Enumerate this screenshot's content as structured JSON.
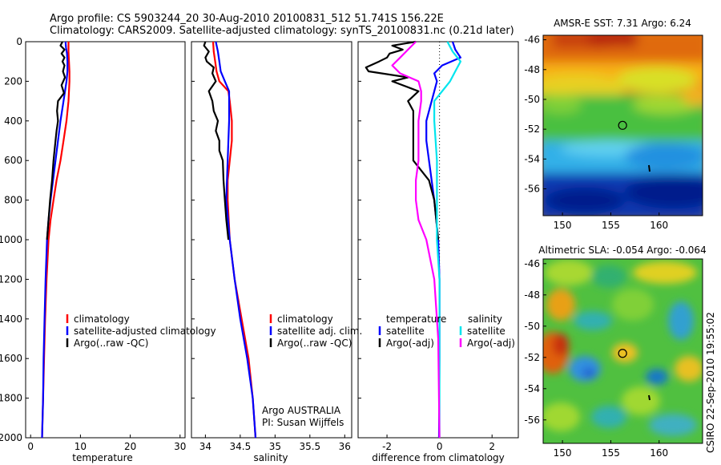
{
  "header": {
    "line1": "Argo profile: CS 5903244_20 30-Aug-2010 20100831_512 51.741S 156.22E",
    "line2": "Climatology: CARS2009. Satellite-adjusted climatology: synTS_20100831.nc (0.21d later)"
  },
  "footer_stamp": "CSIRO 22-Sep-2010 19:55:02",
  "colors": {
    "climatology": "#ff0000",
    "satellite": "#0000ff",
    "argo": "#000000",
    "sal_satellite": "#00e5ee",
    "sal_argo": "#ff00ff",
    "zero_line": "#000000"
  },
  "chart_data": [
    {
      "id": "temperature-profile",
      "type": "line",
      "xlabel": "temperature",
      "ylim": [
        2000,
        0
      ],
      "xlim": [
        -1,
        31
      ],
      "yticks": [
        0,
        200,
        400,
        600,
        800,
        1000,
        1200,
        1400,
        1600,
        1800,
        2000
      ],
      "xticks": [
        0,
        10,
        20,
        30
      ],
      "legend": [
        "climatology",
        "satellite-adjusted climatology",
        "Argo(..raw -QC)"
      ],
      "series": [
        {
          "name": "climatology",
          "color": "#ff0000",
          "depth": [
            0,
            50,
            100,
            150,
            200,
            300,
            400,
            500,
            600,
            700,
            800,
            900,
            1000,
            1200,
            1400,
            1600,
            1800,
            2000
          ],
          "values": [
            7.6,
            7.6,
            7.7,
            7.8,
            7.8,
            7.6,
            7.2,
            6.6,
            6.0,
            5.2,
            4.6,
            4.0,
            3.6,
            3.2,
            2.9,
            2.7,
            2.5,
            2.3
          ]
        },
        {
          "name": "satellite-adjusted climatology",
          "color": "#0000ff",
          "depth": [
            0,
            30,
            60,
            100,
            150,
            200,
            300,
            400,
            500,
            600,
            700,
            800,
            900,
            1000,
            1200,
            1400,
            1600,
            1800,
            2000
          ],
          "values": [
            7.0,
            7.1,
            7.3,
            7.4,
            7.4,
            7.2,
            6.6,
            6.0,
            5.5,
            5.0,
            4.5,
            4.0,
            3.6,
            3.3,
            3.0,
            2.8,
            2.6,
            2.5,
            2.3
          ]
        },
        {
          "name": "Argo(..raw -QC)",
          "color": "#000000",
          "depth": [
            0,
            20,
            40,
            60,
            80,
            100,
            120,
            150,
            180,
            220,
            260,
            300,
            350,
            400,
            450,
            500,
            600,
            700,
            800,
            900,
            1000
          ],
          "values": [
            6.4,
            6.0,
            6.8,
            6.2,
            6.8,
            6.4,
            6.8,
            6.5,
            6.9,
            6.2,
            6.7,
            5.5,
            5.3,
            5.5,
            5.2,
            5.0,
            4.6,
            4.3,
            3.9,
            3.6,
            3.3
          ]
        }
      ]
    },
    {
      "id": "salinity-profile",
      "type": "line",
      "xlabel": "salinity",
      "ylim": [
        2000,
        0
      ],
      "xlim": [
        33.8,
        36.1
      ],
      "xticks": [
        34,
        34.5,
        35,
        35.5,
        36
      ],
      "legend": [
        "climatology",
        "satellite adj. clim.",
        "Argo(..raw -QC)"
      ],
      "annotation": [
        "Argo AUSTRALIA",
        "PI: Susan Wijffels"
      ],
      "series": [
        {
          "name": "climatology",
          "color": "#ff0000",
          "depth": [
            0,
            50,
            100,
            150,
            200,
            250,
            300,
            400,
            500,
            600,
            700,
            800,
            1000,
            1200,
            1400,
            1600,
            1800,
            2000
          ],
          "values": [
            34.11,
            34.12,
            34.14,
            34.16,
            34.2,
            34.33,
            34.35,
            34.38,
            34.38,
            34.35,
            34.32,
            34.32,
            34.35,
            34.42,
            34.52,
            34.62,
            34.68,
            34.72
          ]
        },
        {
          "name": "satellite adj. clim.",
          "color": "#0000ff",
          "depth": [
            0,
            50,
            100,
            150,
            200,
            250,
            300,
            400,
            500,
            600,
            700,
            800,
            1000,
            1200,
            1400,
            1600,
            1800,
            2000
          ],
          "values": [
            34.15,
            34.18,
            34.2,
            34.22,
            34.28,
            34.34,
            34.34,
            34.34,
            34.33,
            34.32,
            34.31,
            34.3,
            34.35,
            34.42,
            34.5,
            34.6,
            34.68,
            34.72
          ]
        },
        {
          "name": "Argo(..raw -QC)",
          "color": "#000000",
          "depth": [
            0,
            20,
            50,
            80,
            100,
            130,
            160,
            200,
            250,
            300,
            350,
            400,
            450,
            500,
            550,
            600,
            700,
            800,
            900,
            1000
          ],
          "values": [
            34.0,
            33.98,
            34.05,
            34.0,
            34.02,
            34.12,
            34.1,
            34.15,
            34.05,
            34.1,
            34.12,
            34.18,
            34.15,
            34.2,
            34.2,
            34.25,
            34.26,
            34.28,
            34.3,
            34.33
          ]
        }
      ]
    },
    {
      "id": "difference-profile",
      "type": "line",
      "xlabel": "difference from climatology",
      "ylim": [
        2000,
        0
      ],
      "xlim": [
        -3.1,
        3.0
      ],
      "xticks": [
        -2,
        0,
        2
      ],
      "legend_left_title": "temperature",
      "legend_left": [
        "satellite",
        "Argo(-adj)"
      ],
      "legend_right_title": "salinity",
      "legend_right": [
        "satellite",
        "Argo(-adj)"
      ],
      "series": [
        {
          "name": "temperature satellite",
          "color": "#0000ff",
          "depth": [
            0,
            40,
            80,
            120,
            160,
            200,
            250,
            300,
            400,
            500,
            600,
            800,
            1000,
            1200,
            1600,
            2000
          ],
          "values": [
            0.5,
            0.6,
            0.8,
            0.1,
            -0.2,
            -0.1,
            -0.2,
            -0.3,
            -0.5,
            -0.5,
            -0.4,
            -0.2,
            -0.05,
            0,
            0,
            -0.02
          ]
        },
        {
          "name": "temperature Argo(-adj)",
          "color": "#000000",
          "depth": [
            0,
            20,
            40,
            60,
            80,
            100,
            130,
            150,
            180,
            200,
            250,
            300,
            350,
            400,
            500,
            600,
            700,
            800,
            1000
          ],
          "values": [
            -0.9,
            -1.8,
            -1.4,
            -1.9,
            -2.0,
            -2.3,
            -2.8,
            -2.7,
            -1.2,
            -1.8,
            -0.8,
            -1.2,
            -1.0,
            -1.0,
            -1.0,
            -1.0,
            -0.4,
            -0.2,
            -0.05
          ]
        },
        {
          "name": "salinity satellite",
          "color": "#00e5ee",
          "depth": [
            0,
            50,
            100,
            150,
            200,
            300,
            400,
            600,
            800,
            1000,
            1200,
            1500,
            2000
          ],
          "values": [
            0.3,
            0.5,
            0.8,
            0.6,
            0.4,
            -0.2,
            -0.2,
            -0.1,
            -0.1,
            -0.1,
            0,
            0,
            0
          ]
        },
        {
          "name": "salinity Argo(-adj)",
          "color": "#ff00ff",
          "depth": [
            0,
            40,
            80,
            120,
            160,
            200,
            250,
            300,
            400,
            500,
            600,
            700,
            800,
            900,
            1000,
            1200,
            1500,
            2000
          ],
          "values": [
            -0.9,
            -1.2,
            -1.5,
            -1.8,
            -1.5,
            -0.8,
            -0.7,
            -0.7,
            -0.8,
            -0.8,
            -0.8,
            -0.9,
            -0.9,
            -0.8,
            -0.5,
            -0.2,
            -0.05,
            0
          ]
        }
      ]
    },
    {
      "id": "sst-map",
      "type": "heatmap",
      "title": "AMSR-E SST: 7.31 Argo: 6.24",
      "xticks": [
        150,
        155,
        160
      ],
      "yticks": [
        -46,
        -48,
        -50,
        -52,
        -54,
        -56
      ],
      "xlim": [
        148,
        164.5
      ],
      "ylim": [
        -57.8,
        -45.7
      ],
      "float_position": {
        "lon": 156.22,
        "lat": -51.741
      }
    },
    {
      "id": "sla-map",
      "type": "heatmap",
      "title": "Altimetric SLA: -0.054 Argo: -0.064",
      "xticks": [
        150,
        155,
        160
      ],
      "yticks": [
        -46,
        -48,
        -50,
        -52,
        -54,
        -56
      ],
      "xlim": [
        148,
        164.5
      ],
      "ylim": [
        -57.5,
        -45.7
      ],
      "float_position": {
        "lon": 156.22,
        "lat": -51.741
      }
    }
  ]
}
